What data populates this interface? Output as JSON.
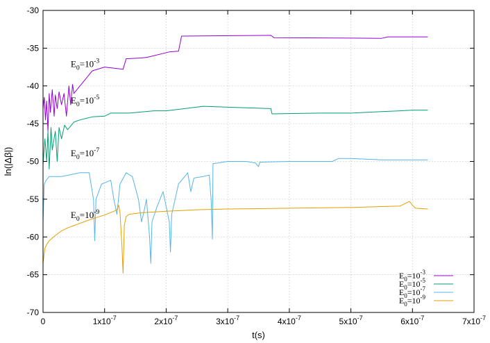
{
  "chart_data": {
    "type": "line",
    "title": "",
    "xlabel": "t(s)",
    "ylabel": "ln(|Δβ|)",
    "xlim": [
      0,
      7e-07
    ],
    "ylim": [
      -70,
      -30
    ],
    "xticks": [
      "0",
      "1x10",
      "2x10",
      "3x10",
      "4x10",
      "5x10",
      "6x10",
      "7x10"
    ],
    "xtick_exponent": "-7",
    "yticks": [
      "-30",
      "-35",
      "-40",
      "-45",
      "-50",
      "-55",
      "-60",
      "-65",
      "-70"
    ],
    "grid": true,
    "legend_position": "bottom-right",
    "series": [
      {
        "name": "E0=10-3",
        "base": "E",
        "sub": "0",
        "mant": "=10",
        "exp": "-3",
        "color": "#9400d3",
        "x": [
          0,
          2e-09,
          4e-09,
          6e-09,
          8e-09,
          1e-08,
          1.2e-08,
          1.5e-08,
          1.8e-08,
          2e-08,
          2.3e-08,
          2.6e-08,
          3e-08,
          3.4e-08,
          3.8e-08,
          4.2e-08,
          4.5e-08,
          4.8e-08,
          5e-08,
          6e-08,
          7e-08,
          8e-08,
          1e-07,
          1.3e-07,
          1.35e-07,
          1.6e-07,
          1.7e-07,
          2.05e-07,
          2.2e-07,
          2.25e-07,
          3.7e-07,
          3.75e-07,
          5.5e-07,
          5.6e-07,
          6.25e-07
        ],
        "y": [
          -43,
          -41.5,
          -44.5,
          -42,
          -46,
          -41,
          -43.5,
          -40.5,
          -44,
          -41.2,
          -43,
          -40.8,
          -42.5,
          -41,
          -44,
          -40,
          -42.5,
          -39.8,
          -41,
          -40,
          -39,
          -38,
          -37.5,
          -37.8,
          -36.4,
          -36.3,
          -36.2,
          -35.5,
          -35.4,
          -33.4,
          -33.3,
          -33.6,
          -33.7,
          -33.5,
          -33.5
        ]
      },
      {
        "name": "E0=10-5",
        "base": "E",
        "sub": "0",
        "mant": "=10",
        "exp": "-5",
        "color": "#009e73",
        "x": [
          0,
          3e-09,
          6e-09,
          8e-09,
          1e-08,
          1.3e-08,
          1.5e-08,
          2e-08,
          2.3e-08,
          2.6e-08,
          3e-08,
          3.5e-08,
          4e-08,
          5e-08,
          6e-08,
          7e-08,
          8e-08,
          1e-07,
          1.1e-07,
          1.4e-07,
          1.8e-07,
          2e-07,
          2.5e-07,
          2.6e-07,
          3.3e-07,
          3.7e-07,
          3.72e-07,
          4.5e-07,
          5e-07,
          5.5e-07,
          5.8e-07,
          6e-07,
          6.25e-07
        ],
        "y": [
          -50.5,
          -47,
          -50,
          -46,
          -51,
          -45.5,
          -48.5,
          -46,
          -50,
          -45.5,
          -47,
          -45.2,
          -45.8,
          -44.8,
          -44.5,
          -44.3,
          -44.1,
          -44,
          -43.6,
          -43.6,
          -43.3,
          -43.3,
          -42.8,
          -42.7,
          -42.9,
          -43.0,
          -43.7,
          -43.6,
          -43.6,
          -43.4,
          -43.3,
          -43.2,
          -43.2
        ]
      },
      {
        "name": "E0=10-7",
        "base": "E",
        "sub": "0",
        "mant": "=10",
        "exp": "-7",
        "color": "#56b4e9",
        "x": [
          0,
          2e-09,
          5e-09,
          1e-08,
          3e-08,
          6e-08,
          7.5e-08,
          8.2e-08,
          8.4e-08,
          8.6e-08,
          9.5e-08,
          1.1e-07,
          1.15e-07,
          1.2e-07,
          1.25e-07,
          1.35e-07,
          1.45e-07,
          1.55e-07,
          1.6e-07,
          1.63e-07,
          1.68e-07,
          1.73e-07,
          1.75e-07,
          1.77e-07,
          1.85e-07,
          1.95e-07,
          2.05e-07,
          2.07e-07,
          2.09e-07,
          2.2e-07,
          2.35e-07,
          2.4e-07,
          2.45e-07,
          2.6e-07,
          2.7e-07,
          2.73e-07,
          2.75e-07,
          2.76e-07,
          3e-07,
          3.3e-07,
          3.45e-07,
          3.5e-07,
          3.52e-07,
          4e-07,
          4.7e-07,
          4.8e-07,
          5e-07,
          5.5e-07,
          6e-07,
          6.25e-07
        ],
        "y": [
          -58,
          -53,
          -52.5,
          -52,
          -52,
          -51.5,
          -51.5,
          -55,
          -60.5,
          -55,
          -53,
          -52.5,
          -55,
          -57,
          -53,
          -51.5,
          -52,
          -55,
          -58,
          -57,
          -55,
          -60,
          -63.5,
          -58,
          -56,
          -54,
          -58,
          -62,
          -57,
          -53,
          -51.5,
          -54,
          -52.2,
          -52,
          -51.8,
          -55,
          -60.3,
          -50.3,
          -50,
          -50,
          -50.2,
          -50.7,
          -50.1,
          -50,
          -50,
          -49.6,
          -49.6,
          -49.8,
          -49.8,
          -49.8
        ]
      },
      {
        "name": "E0=10-9",
        "base": "E",
        "sub": "0",
        "mant": "=10",
        "exp": "-9",
        "color": "#e69f00",
        "x": [
          0,
          3e-09,
          6e-09,
          1e-08,
          2e-08,
          3e-08,
          4e-08,
          5e-08,
          6e-08,
          7e-08,
          8e-08,
          1e-07,
          1.15e-07,
          1.2e-07,
          1.23e-07,
          1.25e-07,
          1.28e-07,
          1.3e-07,
          1.32e-07,
          1.35e-07,
          1.4e-07,
          1.6e-07,
          2e-07,
          2.5e-07,
          3e-07,
          4e-07,
          5e-07,
          5.8e-07,
          5.95e-07,
          6e-07,
          6.05e-07,
          6.25e-07
        ],
        "y": [
          -63.5,
          -61.5,
          -61,
          -60.5,
          -59.8,
          -59.2,
          -58.8,
          -58.5,
          -58.2,
          -57.9,
          -57.6,
          -57.1,
          -56.6,
          -56.4,
          -55.8,
          -56.8,
          -61,
          -64.8,
          -58.5,
          -57.3,
          -57,
          -56.8,
          -56.6,
          -56.4,
          -56.3,
          -56.2,
          -56.1,
          -55.9,
          -55.3,
          -55.8,
          -56.2,
          -56.3
        ]
      }
    ],
    "annotations": [
      {
        "base": "E",
        "sub": "0",
        "mant": "=10",
        "exp": "-3",
        "x": 4.5e-08,
        "y": -37.5
      },
      {
        "base": "E",
        "sub": "0",
        "mant": "=10",
        "exp": "-5",
        "x": 4.5e-08,
        "y": -42.3
      },
      {
        "base": "E",
        "sub": "0",
        "mant": "=10",
        "exp": "-7",
        "x": 4.5e-08,
        "y": -49.3
      },
      {
        "base": "E",
        "sub": "0",
        "mant": "=10",
        "exp": "-9",
        "x": 4.5e-08,
        "y": -57.5
      }
    ]
  }
}
